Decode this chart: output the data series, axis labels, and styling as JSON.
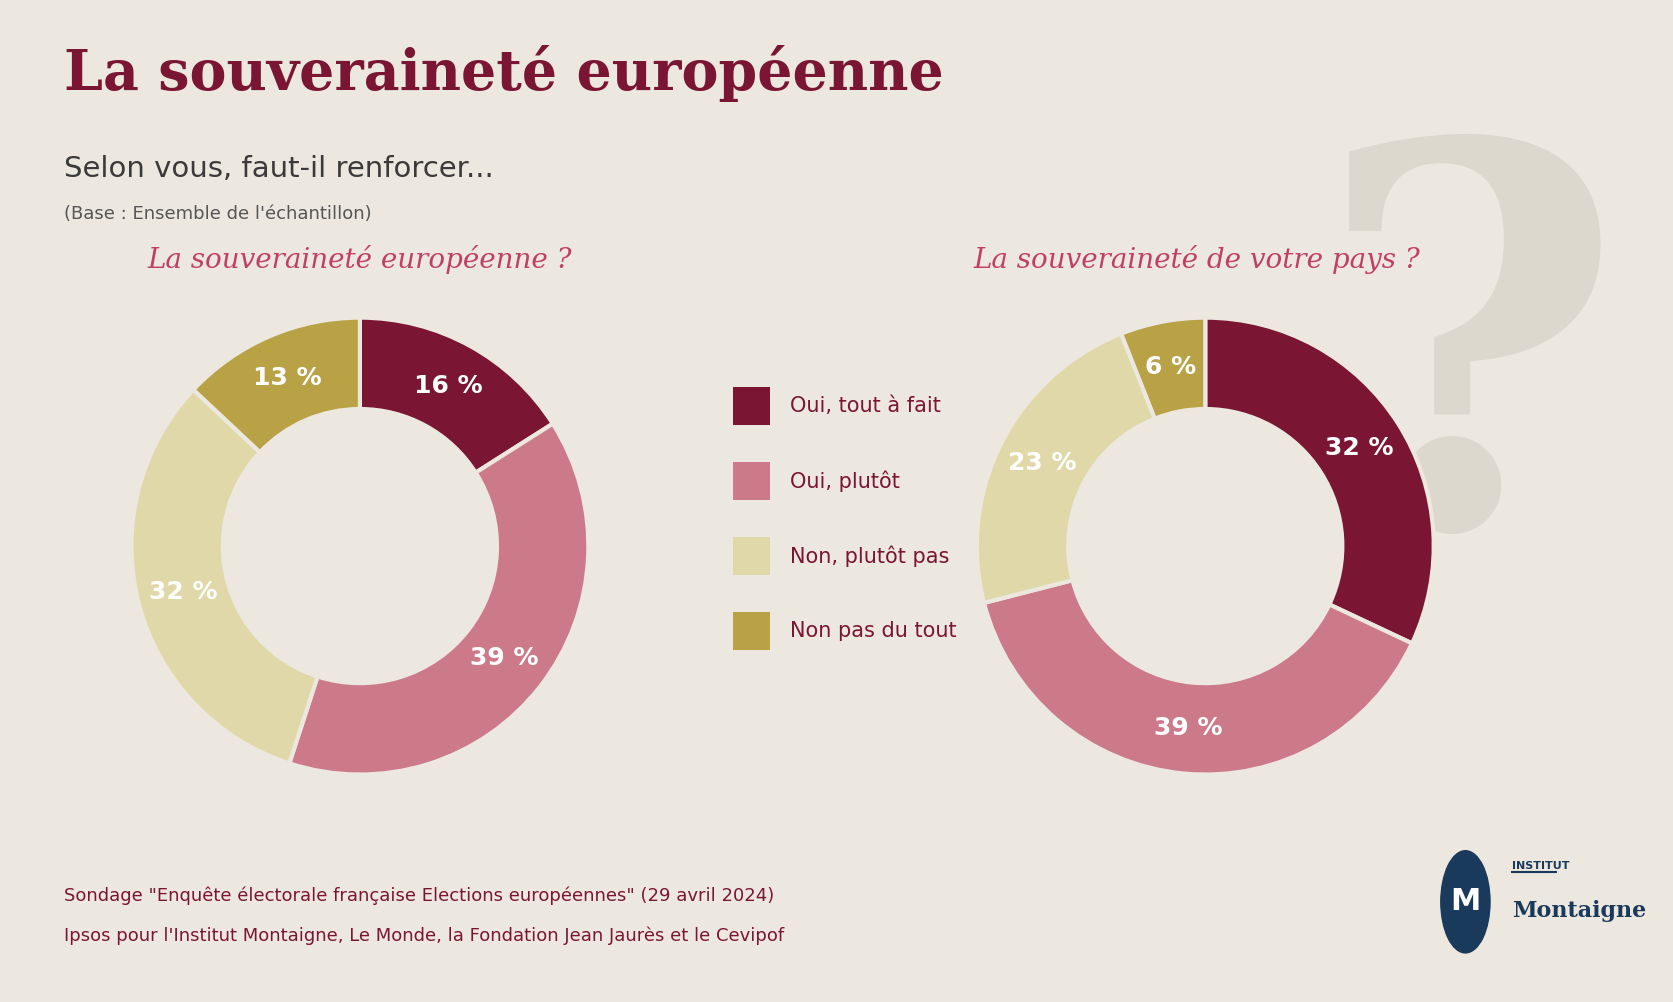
{
  "title": "La souveraineté européenne",
  "subtitle": "Selon vous, faut-il renforcer...",
  "subtitle_note": "(Base : Ensemble de l'échantillon)",
  "background_color": "#ede8df",
  "title_color": "#7a1533",
  "subtitle_color": "#3a3a3a",
  "note_color": "#555555",
  "footnote_line1": "Sondage \"Enquête électorale française Elections européennes\" (29 avril 2024)",
  "footnote_line2": "Ipsos pour l'Institut Montaigne, Le Monde, la Fondation Jean Jaurès et le Cevipof",
  "footnote_color": "#7a1533",
  "chart1_title": "La souveraineté européenne ?",
  "chart2_title": "La souveraineté de votre pays ?",
  "chart_title_color": "#c04060",
  "labels": [
    "Oui, tout à fait",
    "Oui, plutôt",
    "Non, plutôt pas",
    "Non pas du tout"
  ],
  "colors": [
    "#7a1533",
    "#cc7a8a",
    "#e0d8a8",
    "#b8a245"
  ],
  "chart1_values": [
    16,
    39,
    32,
    13
  ],
  "chart2_values": [
    32,
    39,
    23,
    6
  ],
  "label_color": "#ffffff",
  "legend_text_color": "#7a1533",
  "watermark_color": "#ddd8ce",
  "watermark_alpha": 1.0
}
